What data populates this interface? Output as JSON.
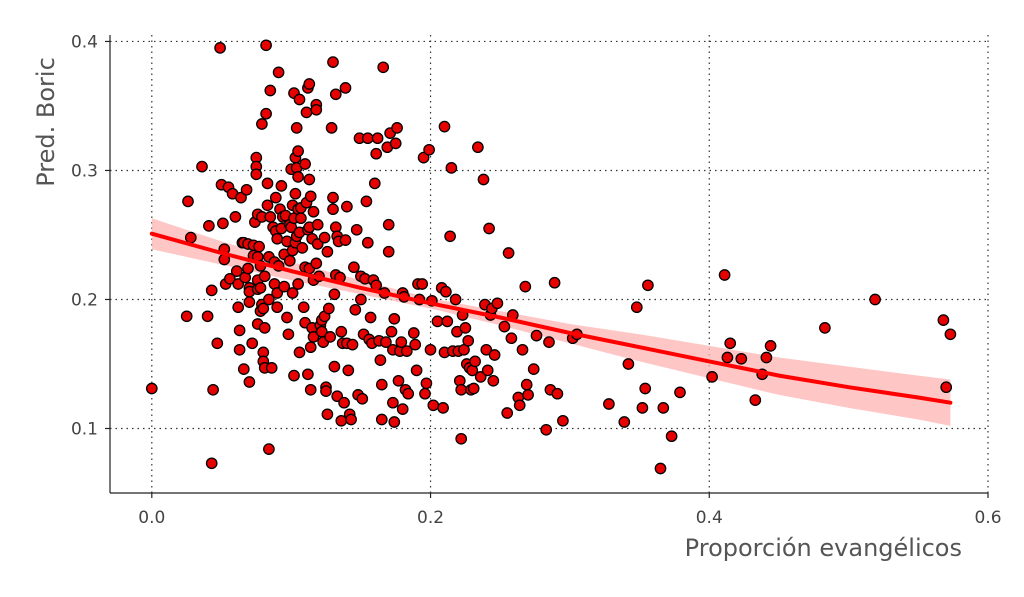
{
  "chart_data": {
    "type": "scatter",
    "title": "",
    "xlabel": "Proporción evangélicos",
    "ylabel": "Pred. Boric",
    "xlim": [
      -0.03,
      0.6
    ],
    "ylim": [
      0.05,
      0.405
    ],
    "xticks": [
      0.0,
      0.2,
      0.4,
      0.6
    ],
    "xtick_labels": [
      "0.0",
      "0.2",
      "0.4",
      "0.6"
    ],
    "yticks": [
      0.1,
      0.2,
      0.3,
      0.4
    ],
    "ytick_labels": [
      "0.1",
      "0.2",
      "0.3",
      "0.4"
    ],
    "grid": true,
    "colors": {
      "points": "#e60000",
      "point_edge": "#000000",
      "trend": "#ff0000",
      "band": "#ffb3b3"
    },
    "points": [
      [
        0.0,
        0.131
      ],
      [
        0.025,
        0.187
      ],
      [
        0.026,
        0.276
      ],
      [
        0.028,
        0.248
      ],
      [
        0.036,
        0.303
      ],
      [
        0.04,
        0.187
      ],
      [
        0.041,
        0.257
      ],
      [
        0.043,
        0.207
      ],
      [
        0.043,
        0.073
      ],
      [
        0.044,
        0.13
      ],
      [
        0.047,
        0.166
      ],
      [
        0.049,
        0.395
      ],
      [
        0.05,
        0.289
      ],
      [
        0.051,
        0.259
      ],
      [
        0.052,
        0.239
      ],
      [
        0.052,
        0.231
      ],
      [
        0.053,
        0.212
      ],
      [
        0.055,
        0.287
      ],
      [
        0.056,
        0.216
      ],
      [
        0.058,
        0.282
      ],
      [
        0.06,
        0.264
      ],
      [
        0.061,
        0.222
      ],
      [
        0.062,
        0.212
      ],
      [
        0.062,
        0.194
      ],
      [
        0.063,
        0.176
      ],
      [
        0.063,
        0.161
      ],
      [
        0.064,
        0.279
      ],
      [
        0.065,
        0.244
      ],
      [
        0.066,
        0.244
      ],
      [
        0.066,
        0.146
      ],
      [
        0.067,
        0.217
      ],
      [
        0.068,
        0.285
      ],
      [
        0.069,
        0.243
      ],
      [
        0.069,
        0.224
      ],
      [
        0.07,
        0.209
      ],
      [
        0.07,
        0.206
      ],
      [
        0.07,
        0.198
      ],
      [
        0.07,
        0.136
      ],
      [
        0.072,
        0.166
      ],
      [
        0.073,
        0.242
      ],
      [
        0.073,
        0.234
      ],
      [
        0.074,
        0.26
      ],
      [
        0.075,
        0.31
      ],
      [
        0.075,
        0.303
      ],
      [
        0.075,
        0.297
      ],
      [
        0.076,
        0.266
      ],
      [
        0.076,
        0.233
      ],
      [
        0.076,
        0.215
      ],
      [
        0.076,
        0.208
      ],
      [
        0.076,
        0.181
      ],
      [
        0.077,
        0.241
      ],
      [
        0.078,
        0.226
      ],
      [
        0.078,
        0.209
      ],
      [
        0.078,
        0.191
      ],
      [
        0.079,
        0.336
      ],
      [
        0.079,
        0.264
      ],
      [
        0.079,
        0.196
      ],
      [
        0.08,
        0.193
      ],
      [
        0.08,
        0.159
      ],
      [
        0.08,
        0.152
      ],
      [
        0.081,
        0.218
      ],
      [
        0.081,
        0.178
      ],
      [
        0.081,
        0.147
      ],
      [
        0.082,
        0.397
      ],
      [
        0.082,
        0.344
      ],
      [
        0.083,
        0.29
      ],
      [
        0.083,
        0.273
      ],
      [
        0.084,
        0.233
      ],
      [
        0.084,
        0.2
      ],
      [
        0.084,
        0.084
      ],
      [
        0.085,
        0.362
      ],
      [
        0.085,
        0.264
      ],
      [
        0.086,
        0.147
      ],
      [
        0.087,
        0.256
      ],
      [
        0.088,
        0.229
      ],
      [
        0.088,
        0.212
      ],
      [
        0.089,
        0.279
      ],
      [
        0.089,
        0.253
      ],
      [
        0.09,
        0.247
      ],
      [
        0.09,
        0.205
      ],
      [
        0.09,
        0.194
      ],
      [
        0.091,
        0.376
      ],
      [
        0.091,
        0.226
      ],
      [
        0.092,
        0.27
      ],
      [
        0.093,
        0.288
      ],
      [
        0.093,
        0.255
      ],
      [
        0.094,
        0.264
      ],
      [
        0.095,
        0.235
      ],
      [
        0.095,
        0.21
      ],
      [
        0.096,
        0.265
      ],
      [
        0.097,
        0.245
      ],
      [
        0.097,
        0.186
      ],
      [
        0.098,
        0.173
      ],
      [
        0.099,
        0.258
      ],
      [
        0.099,
        0.23
      ],
      [
        0.1,
        0.301
      ],
      [
        0.1,
        0.256
      ],
      [
        0.101,
        0.273
      ],
      [
        0.101,
        0.238
      ],
      [
        0.101,
        0.205
      ],
      [
        0.102,
        0.36
      ],
      [
        0.102,
        0.263
      ],
      [
        0.102,
        0.141
      ],
      [
        0.103,
        0.31
      ],
      [
        0.103,
        0.282
      ],
      [
        0.103,
        0.244
      ],
      [
        0.104,
        0.333
      ],
      [
        0.104,
        0.302
      ],
      [
        0.104,
        0.249
      ],
      [
        0.105,
        0.315
      ],
      [
        0.105,
        0.295
      ],
      [
        0.105,
        0.27
      ],
      [
        0.105,
        0.212
      ],
      [
        0.106,
        0.355
      ],
      [
        0.106,
        0.252
      ],
      [
        0.106,
        0.159
      ],
      [
        0.107,
        0.271
      ],
      [
        0.107,
        0.263
      ],
      [
        0.108,
        0.24
      ],
      [
        0.109,
        0.194
      ],
      [
        0.11,
        0.305
      ],
      [
        0.11,
        0.225
      ],
      [
        0.11,
        0.182
      ],
      [
        0.111,
        0.345
      ],
      [
        0.111,
        0.275
      ],
      [
        0.112,
        0.364
      ],
      [
        0.112,
        0.254
      ],
      [
        0.112,
        0.142
      ],
      [
        0.113,
        0.367
      ],
      [
        0.113,
        0.293
      ],
      [
        0.113,
        0.256
      ],
      [
        0.113,
        0.224
      ],
      [
        0.114,
        0.28
      ],
      [
        0.114,
        0.163
      ],
      [
        0.114,
        0.13
      ],
      [
        0.115,
        0.247
      ],
      [
        0.115,
        0.178
      ],
      [
        0.116,
        0.268
      ],
      [
        0.116,
        0.215
      ],
      [
        0.116,
        0.171
      ],
      [
        0.118,
        0.351
      ],
      [
        0.118,
        0.347
      ],
      [
        0.118,
        0.228
      ],
      [
        0.119,
        0.258
      ],
      [
        0.119,
        0.243
      ],
      [
        0.12,
        0.218
      ],
      [
        0.121,
        0.18
      ],
      [
        0.122,
        0.184
      ],
      [
        0.122,
        0.175
      ],
      [
        0.123,
        0.167
      ],
      [
        0.124,
        0.248
      ],
      [
        0.124,
        0.187
      ],
      [
        0.125,
        0.132
      ],
      [
        0.125,
        0.129
      ],
      [
        0.126,
        0.237
      ],
      [
        0.126,
        0.111
      ],
      [
        0.127,
        0.193
      ],
      [
        0.128,
        0.171
      ],
      [
        0.129,
        0.333
      ],
      [
        0.13,
        0.384
      ],
      [
        0.13,
        0.279
      ],
      [
        0.13,
        0.27
      ],
      [
        0.131,
        0.204
      ],
      [
        0.131,
        0.148
      ],
      [
        0.132,
        0.359
      ],
      [
        0.132,
        0.256
      ],
      [
        0.132,
        0.219
      ],
      [
        0.133,
        0.249
      ],
      [
        0.133,
        0.125
      ],
      [
        0.134,
        0.245
      ],
      [
        0.135,
        0.217
      ],
      [
        0.136,
        0.175
      ],
      [
        0.136,
        0.106
      ],
      [
        0.137,
        0.166
      ],
      [
        0.138,
        0.12
      ],
      [
        0.139,
        0.364
      ],
      [
        0.139,
        0.246
      ],
      [
        0.14,
        0.272
      ],
      [
        0.14,
        0.166
      ],
      [
        0.141,
        0.145
      ],
      [
        0.142,
        0.111
      ],
      [
        0.143,
        0.107
      ],
      [
        0.144,
        0.165
      ],
      [
        0.145,
        0.225
      ],
      [
        0.146,
        0.192
      ],
      [
        0.147,
        0.254
      ],
      [
        0.148,
        0.126
      ],
      [
        0.149,
        0.325
      ],
      [
        0.15,
        0.218
      ],
      [
        0.15,
        0.2
      ],
      [
        0.151,
        0.123
      ],
      [
        0.152,
        0.173
      ],
      [
        0.153,
        0.216
      ],
      [
        0.154,
        0.276
      ],
      [
        0.155,
        0.325
      ],
      [
        0.155,
        0.244
      ],
      [
        0.156,
        0.169
      ],
      [
        0.157,
        0.186
      ],
      [
        0.158,
        0.166
      ],
      [
        0.159,
        0.215
      ],
      [
        0.16,
        0.29
      ],
      [
        0.161,
        0.313
      ],
      [
        0.161,
        0.211
      ],
      [
        0.162,
        0.325
      ],
      [
        0.163,
        0.168
      ],
      [
        0.164,
        0.153
      ],
      [
        0.165,
        0.134
      ],
      [
        0.165,
        0.107
      ],
      [
        0.166,
        0.38
      ],
      [
        0.167,
        0.205
      ],
      [
        0.168,
        0.167
      ],
      [
        0.169,
        0.318
      ],
      [
        0.17,
        0.258
      ],
      [
        0.17,
        0.237
      ],
      [
        0.171,
        0.329
      ],
      [
        0.172,
        0.175
      ],
      [
        0.173,
        0.161
      ],
      [
        0.173,
        0.12
      ],
      [
        0.174,
        0.185
      ],
      [
        0.174,
        0.105
      ],
      [
        0.175,
        0.321
      ],
      [
        0.176,
        0.333
      ],
      [
        0.177,
        0.137
      ],
      [
        0.178,
        0.16
      ],
      [
        0.179,
        0.167
      ],
      [
        0.18,
        0.205
      ],
      [
        0.18,
        0.115
      ],
      [
        0.181,
        0.202
      ],
      [
        0.182,
        0.13
      ],
      [
        0.183,
        0.16
      ],
      [
        0.184,
        0.127
      ],
      [
        0.188,
        0.174
      ],
      [
        0.189,
        0.165
      ],
      [
        0.19,
        0.145
      ],
      [
        0.191,
        0.212
      ],
      [
        0.192,
        0.2
      ],
      [
        0.194,
        0.212
      ],
      [
        0.195,
        0.31
      ],
      [
        0.196,
        0.127
      ],
      [
        0.197,
        0.135
      ],
      [
        0.199,
        0.316
      ],
      [
        0.2,
        0.161
      ],
      [
        0.201,
        0.199
      ],
      [
        0.202,
        0.118
      ],
      [
        0.205,
        0.183
      ],
      [
        0.208,
        0.209
      ],
      [
        0.209,
        0.116
      ],
      [
        0.21,
        0.334
      ],
      [
        0.21,
        0.159
      ],
      [
        0.211,
        0.206
      ],
      [
        0.212,
        0.183
      ],
      [
        0.214,
        0.249
      ],
      [
        0.215,
        0.302
      ],
      [
        0.216,
        0.16
      ],
      [
        0.218,
        0.2
      ],
      [
        0.219,
        0.175
      ],
      [
        0.22,
        0.16
      ],
      [
        0.221,
        0.137
      ],
      [
        0.222,
        0.13
      ],
      [
        0.222,
        0.092
      ],
      [
        0.223,
        0.188
      ],
      [
        0.224,
        0.161
      ],
      [
        0.225,
        0.178
      ],
      [
        0.226,
        0.15
      ],
      [
        0.227,
        0.168
      ],
      [
        0.228,
        0.147
      ],
      [
        0.229,
        0.13
      ],
      [
        0.23,
        0.145
      ],
      [
        0.231,
        0.131
      ],
      [
        0.232,
        0.152
      ],
      [
        0.234,
        0.318
      ],
      [
        0.236,
        0.14
      ],
      [
        0.238,
        0.293
      ],
      [
        0.239,
        0.196
      ],
      [
        0.24,
        0.161
      ],
      [
        0.241,
        0.145
      ],
      [
        0.242,
        0.255
      ],
      [
        0.243,
        0.188
      ],
      [
        0.244,
        0.193
      ],
      [
        0.245,
        0.137
      ],
      [
        0.246,
        0.157
      ],
      [
        0.248,
        0.197
      ],
      [
        0.253,
        0.179
      ],
      [
        0.255,
        0.112
      ],
      [
        0.256,
        0.236
      ],
      [
        0.258,
        0.17
      ],
      [
        0.259,
        0.188
      ],
      [
        0.263,
        0.124
      ],
      [
        0.264,
        0.118
      ],
      [
        0.266,
        0.161
      ],
      [
        0.268,
        0.21
      ],
      [
        0.269,
        0.134
      ],
      [
        0.27,
        0.126
      ],
      [
        0.274,
        0.146
      ],
      [
        0.276,
        0.172
      ],
      [
        0.283,
        0.099
      ],
      [
        0.285,
        0.167
      ],
      [
        0.286,
        0.13
      ],
      [
        0.289,
        0.213
      ],
      [
        0.291,
        0.127
      ],
      [
        0.295,
        0.106
      ],
      [
        0.302,
        0.17
      ],
      [
        0.305,
        0.173
      ],
      [
        0.328,
        0.119
      ],
      [
        0.339,
        0.105
      ],
      [
        0.342,
        0.15
      ],
      [
        0.348,
        0.194
      ],
      [
        0.352,
        0.116
      ],
      [
        0.354,
        0.131
      ],
      [
        0.356,
        0.211
      ],
      [
        0.365,
        0.069
      ],
      [
        0.367,
        0.116
      ],
      [
        0.373,
        0.094
      ],
      [
        0.379,
        0.128
      ],
      [
        0.402,
        0.14
      ],
      [
        0.411,
        0.219
      ],
      [
        0.413,
        0.155
      ],
      [
        0.415,
        0.166
      ],
      [
        0.423,
        0.154
      ],
      [
        0.433,
        0.122
      ],
      [
        0.438,
        0.142
      ],
      [
        0.441,
        0.155
      ],
      [
        0.444,
        0.164
      ],
      [
        0.483,
        0.178
      ],
      [
        0.519,
        0.2
      ],
      [
        0.568,
        0.184
      ],
      [
        0.57,
        0.132
      ],
      [
        0.573,
        0.173
      ]
    ],
    "trend": {
      "x": [
        0.0,
        0.05,
        0.1,
        0.15,
        0.2,
        0.25,
        0.3,
        0.35,
        0.4,
        0.45,
        0.5,
        0.55,
        0.573
      ],
      "y": [
        0.251,
        0.236,
        0.222,
        0.209,
        0.197,
        0.186,
        0.174,
        0.163,
        0.152,
        0.141,
        0.132,
        0.124,
        0.12
      ],
      "lower": [
        0.239,
        0.227,
        0.215,
        0.204,
        0.193,
        0.18,
        0.166,
        0.152,
        0.139,
        0.126,
        0.116,
        0.107,
        0.102
      ],
      "upper": [
        0.263,
        0.245,
        0.229,
        0.215,
        0.201,
        0.191,
        0.181,
        0.173,
        0.164,
        0.155,
        0.148,
        0.141,
        0.138
      ]
    }
  }
}
